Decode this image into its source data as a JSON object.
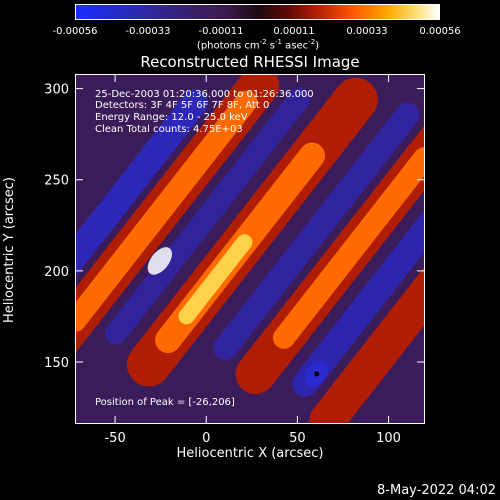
{
  "colorbar": {
    "ticks": [
      "-0.00056",
      "-0.00033",
      "-0.00011",
      "0.00011",
      "0.00033",
      "0.00056"
    ],
    "unit_main": "(photons cm",
    "unit_e1": "-2",
    "unit_mid": " s",
    "unit_e2": "-1",
    "unit_mid2": " asec",
    "unit_e3": "-2",
    "unit_end": ")"
  },
  "annotation": {
    "time": "25-Dec-2003 01:20:36.000 to 01:26:36.000",
    "detectors": "Detectors: 3F 4F 5F 6F 7F 8F, Att 0",
    "energy": "Energy Range: 12.0 - 25.0 keV",
    "clean": "Clean     Total counts: 4.75E+03",
    "peak": "Position of Peak = [-26,206]"
  },
  "footer": {
    "date": "8-May-2022 04:02"
  },
  "colors": {
    "negative": "#2a2ad0",
    "neutral": "#3b1c5a",
    "positive_low": "#b01d05",
    "positive_mid": "#ff6a00",
    "positive_high": "#ffd24a",
    "peak": "#ffffff"
  },
  "chart_data": {
    "type": "heatmap",
    "title": "Reconstructed RHESSI Image",
    "xlabel": "Heliocentric X (arcsec)",
    "ylabel": "Heliocentric Y (arcsec)",
    "xlim": [
      -72,
      120
    ],
    "ylim": [
      116,
      308
    ],
    "x_ticks": [
      -50,
      0,
      50,
      100
    ],
    "y_ticks": [
      150,
      200,
      250,
      300
    ],
    "x_tick_labels": [
      "-50",
      "0",
      "50",
      "100"
    ],
    "y_tick_labels": [
      "150",
      "200",
      "250",
      "300"
    ],
    "clim": [
      -0.00056,
      0.00056
    ],
    "peak_position": [
      -26,
      206
    ],
    "minimum_marker": [
      60,
      144
    ],
    "grid": false
  }
}
